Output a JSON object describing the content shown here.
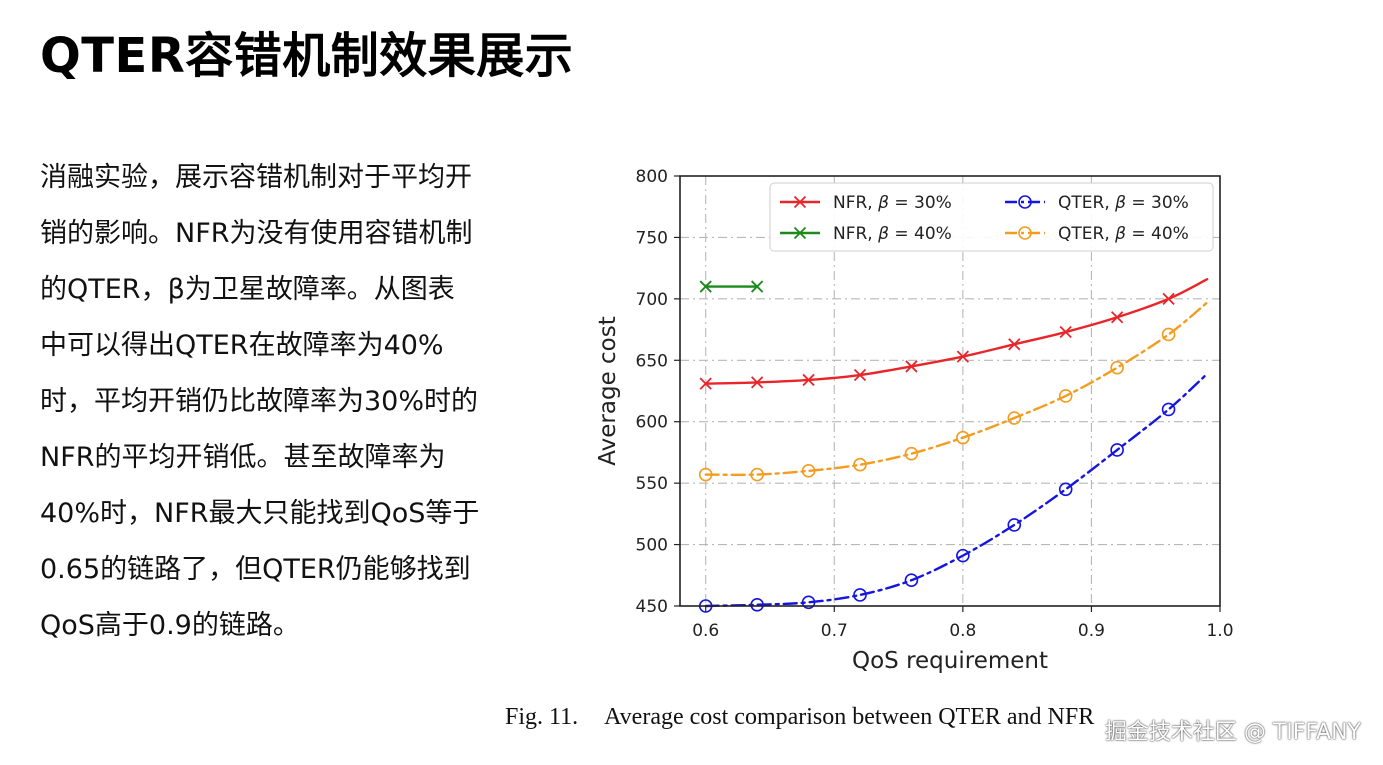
{
  "slide": {
    "title": "QTER容错机制效果展示",
    "body": "消融实验，展示容错机制对于平均开销的影响。NFR为没有使用容错机制的QTER，β为卫星故障率。从图表中可以得出QTER在故障率为40%时，平均开销仍比故障率为30%时的NFR的平均开销低。甚至故障率为40%时，NFR最大只能找到QoS等于0.65的链路了，但QTER仍能够找到QoS高于0.9的链路。"
  },
  "caption": {
    "label": "Fig. 11.",
    "text": "Average cost comparison between QTER and NFR"
  },
  "watermark": "掘金技术社区 @ TIFFANY",
  "chart_data": {
    "type": "line",
    "title": "",
    "xlabel": "QoS requirement",
    "ylabel": "Average cost",
    "xlim": [
      0.58,
      1.0
    ],
    "ylim": [
      450,
      800
    ],
    "xticks": [
      "0.6",
      "0.7",
      "0.8",
      "0.9",
      "1.0"
    ],
    "yticks": [
      "450",
      "500",
      "550",
      "600",
      "650",
      "700",
      "750",
      "800"
    ],
    "grid": true,
    "legend_position": "top-right",
    "series": [
      {
        "name": "NFR, β = 30%",
        "legend_prefix": "NFR, ",
        "beta_label": "β",
        "legend_suffix": " = 30%",
        "color": "#e8262a",
        "marker": "x",
        "linestyle": "solid",
        "x": [
          0.6,
          0.64,
          0.68,
          0.72,
          0.76,
          0.8,
          0.84,
          0.88,
          0.92,
          0.96
        ],
        "y": [
          631,
          632,
          634,
          638,
          645,
          653,
          663,
          673,
          685,
          700
        ],
        "curve_end": [
          0.99,
          716
        ]
      },
      {
        "name": "NFR, β = 40%",
        "legend_prefix": "NFR, ",
        "beta_label": "β",
        "legend_suffix": " = 40%",
        "color": "#1b8a1b",
        "marker": "x",
        "linestyle": "solid",
        "x": [
          0.6,
          0.64
        ],
        "y": [
          710,
          710
        ],
        "curve_end": null
      },
      {
        "name": "QTER, β = 30%",
        "legend_prefix": "QTER, ",
        "beta_label": "β",
        "legend_suffix": " = 30%",
        "color": "#1515e0",
        "marker": "o",
        "linestyle": "dashdot",
        "x": [
          0.6,
          0.64,
          0.68,
          0.72,
          0.76,
          0.8,
          0.84,
          0.88,
          0.92,
          0.96
        ],
        "y": [
          450,
          451,
          453,
          459,
          471,
          491,
          516,
          545,
          577,
          610
        ],
        "curve_end": [
          0.99,
          639
        ]
      },
      {
        "name": "QTER, β = 40%",
        "legend_prefix": "QTER, ",
        "beta_label": "β",
        "legend_suffix": " = 40%",
        "color": "#f39c1e",
        "marker": "o",
        "linestyle": "dashdot",
        "x": [
          0.6,
          0.64,
          0.68,
          0.72,
          0.76,
          0.8,
          0.84,
          0.88,
          0.92,
          0.96
        ],
        "y": [
          557,
          557,
          560,
          565,
          574,
          587,
          603,
          621,
          644,
          671
        ],
        "curve_end": [
          0.99,
          697
        ]
      }
    ]
  }
}
